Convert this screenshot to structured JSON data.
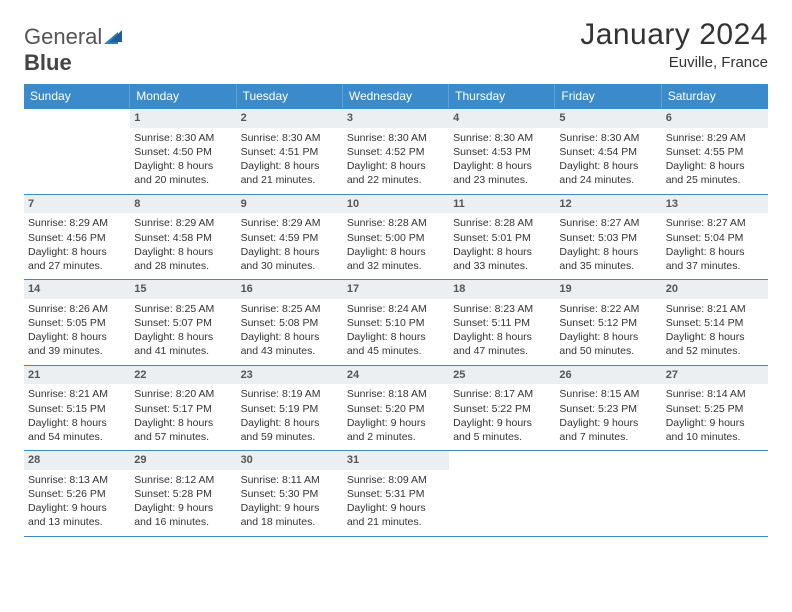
{
  "logo": {
    "part1": "General",
    "part2": "Blue"
  },
  "title": "January 2024",
  "location": "Euville, France",
  "colors": {
    "header_bg": "#3b8bca",
    "header_text": "#ffffff",
    "daynum_bg": "#eceff1",
    "border": "#3b8bca",
    "logo_accent": "#2a7bbf"
  },
  "weekdays": [
    "Sunday",
    "Monday",
    "Tuesday",
    "Wednesday",
    "Thursday",
    "Friday",
    "Saturday"
  ],
  "weeks": [
    [
      {
        "num": "",
        "sunrise": "",
        "sunset": "",
        "daylight": ""
      },
      {
        "num": "1",
        "sunrise": "Sunrise: 8:30 AM",
        "sunset": "Sunset: 4:50 PM",
        "daylight": "Daylight: 8 hours and 20 minutes."
      },
      {
        "num": "2",
        "sunrise": "Sunrise: 8:30 AM",
        "sunset": "Sunset: 4:51 PM",
        "daylight": "Daylight: 8 hours and 21 minutes."
      },
      {
        "num": "3",
        "sunrise": "Sunrise: 8:30 AM",
        "sunset": "Sunset: 4:52 PM",
        "daylight": "Daylight: 8 hours and 22 minutes."
      },
      {
        "num": "4",
        "sunrise": "Sunrise: 8:30 AM",
        "sunset": "Sunset: 4:53 PM",
        "daylight": "Daylight: 8 hours and 23 minutes."
      },
      {
        "num": "5",
        "sunrise": "Sunrise: 8:30 AM",
        "sunset": "Sunset: 4:54 PM",
        "daylight": "Daylight: 8 hours and 24 minutes."
      },
      {
        "num": "6",
        "sunrise": "Sunrise: 8:29 AM",
        "sunset": "Sunset: 4:55 PM",
        "daylight": "Daylight: 8 hours and 25 minutes."
      }
    ],
    [
      {
        "num": "7",
        "sunrise": "Sunrise: 8:29 AM",
        "sunset": "Sunset: 4:56 PM",
        "daylight": "Daylight: 8 hours and 27 minutes."
      },
      {
        "num": "8",
        "sunrise": "Sunrise: 8:29 AM",
        "sunset": "Sunset: 4:58 PM",
        "daylight": "Daylight: 8 hours and 28 minutes."
      },
      {
        "num": "9",
        "sunrise": "Sunrise: 8:29 AM",
        "sunset": "Sunset: 4:59 PM",
        "daylight": "Daylight: 8 hours and 30 minutes."
      },
      {
        "num": "10",
        "sunrise": "Sunrise: 8:28 AM",
        "sunset": "Sunset: 5:00 PM",
        "daylight": "Daylight: 8 hours and 32 minutes."
      },
      {
        "num": "11",
        "sunrise": "Sunrise: 8:28 AM",
        "sunset": "Sunset: 5:01 PM",
        "daylight": "Daylight: 8 hours and 33 minutes."
      },
      {
        "num": "12",
        "sunrise": "Sunrise: 8:27 AM",
        "sunset": "Sunset: 5:03 PM",
        "daylight": "Daylight: 8 hours and 35 minutes."
      },
      {
        "num": "13",
        "sunrise": "Sunrise: 8:27 AM",
        "sunset": "Sunset: 5:04 PM",
        "daylight": "Daylight: 8 hours and 37 minutes."
      }
    ],
    [
      {
        "num": "14",
        "sunrise": "Sunrise: 8:26 AM",
        "sunset": "Sunset: 5:05 PM",
        "daylight": "Daylight: 8 hours and 39 minutes."
      },
      {
        "num": "15",
        "sunrise": "Sunrise: 8:25 AM",
        "sunset": "Sunset: 5:07 PM",
        "daylight": "Daylight: 8 hours and 41 minutes."
      },
      {
        "num": "16",
        "sunrise": "Sunrise: 8:25 AM",
        "sunset": "Sunset: 5:08 PM",
        "daylight": "Daylight: 8 hours and 43 minutes."
      },
      {
        "num": "17",
        "sunrise": "Sunrise: 8:24 AM",
        "sunset": "Sunset: 5:10 PM",
        "daylight": "Daylight: 8 hours and 45 minutes."
      },
      {
        "num": "18",
        "sunrise": "Sunrise: 8:23 AM",
        "sunset": "Sunset: 5:11 PM",
        "daylight": "Daylight: 8 hours and 47 minutes."
      },
      {
        "num": "19",
        "sunrise": "Sunrise: 8:22 AM",
        "sunset": "Sunset: 5:12 PM",
        "daylight": "Daylight: 8 hours and 50 minutes."
      },
      {
        "num": "20",
        "sunrise": "Sunrise: 8:21 AM",
        "sunset": "Sunset: 5:14 PM",
        "daylight": "Daylight: 8 hours and 52 minutes."
      }
    ],
    [
      {
        "num": "21",
        "sunrise": "Sunrise: 8:21 AM",
        "sunset": "Sunset: 5:15 PM",
        "daylight": "Daylight: 8 hours and 54 minutes."
      },
      {
        "num": "22",
        "sunrise": "Sunrise: 8:20 AM",
        "sunset": "Sunset: 5:17 PM",
        "daylight": "Daylight: 8 hours and 57 minutes."
      },
      {
        "num": "23",
        "sunrise": "Sunrise: 8:19 AM",
        "sunset": "Sunset: 5:19 PM",
        "daylight": "Daylight: 8 hours and 59 minutes."
      },
      {
        "num": "24",
        "sunrise": "Sunrise: 8:18 AM",
        "sunset": "Sunset: 5:20 PM",
        "daylight": "Daylight: 9 hours and 2 minutes."
      },
      {
        "num": "25",
        "sunrise": "Sunrise: 8:17 AM",
        "sunset": "Sunset: 5:22 PM",
        "daylight": "Daylight: 9 hours and 5 minutes."
      },
      {
        "num": "26",
        "sunrise": "Sunrise: 8:15 AM",
        "sunset": "Sunset: 5:23 PM",
        "daylight": "Daylight: 9 hours and 7 minutes."
      },
      {
        "num": "27",
        "sunrise": "Sunrise: 8:14 AM",
        "sunset": "Sunset: 5:25 PM",
        "daylight": "Daylight: 9 hours and 10 minutes."
      }
    ],
    [
      {
        "num": "28",
        "sunrise": "Sunrise: 8:13 AM",
        "sunset": "Sunset: 5:26 PM",
        "daylight": "Daylight: 9 hours and 13 minutes."
      },
      {
        "num": "29",
        "sunrise": "Sunrise: 8:12 AM",
        "sunset": "Sunset: 5:28 PM",
        "daylight": "Daylight: 9 hours and 16 minutes."
      },
      {
        "num": "30",
        "sunrise": "Sunrise: 8:11 AM",
        "sunset": "Sunset: 5:30 PM",
        "daylight": "Daylight: 9 hours and 18 minutes."
      },
      {
        "num": "31",
        "sunrise": "Sunrise: 8:09 AM",
        "sunset": "Sunset: 5:31 PM",
        "daylight": "Daylight: 9 hours and 21 minutes."
      },
      {
        "num": "",
        "sunrise": "",
        "sunset": "",
        "daylight": ""
      },
      {
        "num": "",
        "sunrise": "",
        "sunset": "",
        "daylight": ""
      },
      {
        "num": "",
        "sunrise": "",
        "sunset": "",
        "daylight": ""
      }
    ]
  ]
}
